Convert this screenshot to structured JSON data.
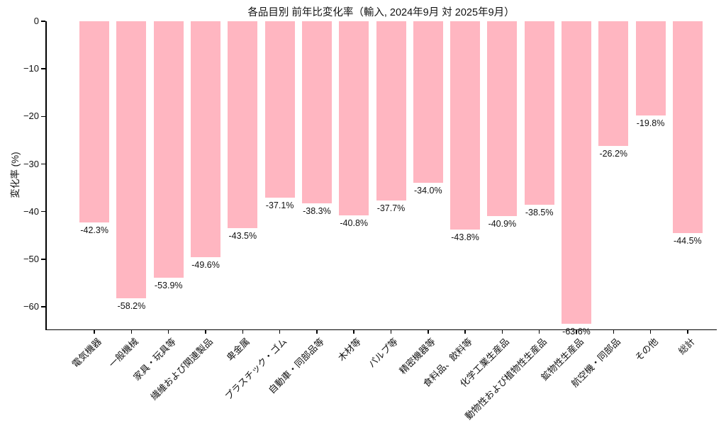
{
  "chart_data": {
    "type": "bar",
    "title": "各品目別 前年比変化率（輸入, 2024年9月 対 2025年9月）",
    "xlabel": "",
    "ylabel": "変化率 (%)",
    "ylim": [
      -64.75,
      0
    ],
    "grid": false,
    "legend": null,
    "bar_color": "#FFB6C1",
    "axis_color": "#000000",
    "categories": [
      "電気機器",
      "一般機械",
      "家具・玩具等",
      "繊維および関連製品",
      "卑金属",
      "プラスチック・ゴム",
      "自動車・同部品等",
      "木材等",
      "パルプ等",
      "精密機器等",
      "食料品、飲料等",
      "化学工業生産品",
      "動物性および植物性生産品",
      "鉱物性生産品",
      "航空機・同部品",
      "その他",
      "総計"
    ],
    "values": [
      -42.3,
      -58.2,
      -53.9,
      -49.6,
      -43.5,
      -37.1,
      -38.3,
      -40.8,
      -37.7,
      -34.0,
      -43.8,
      -40.9,
      -38.5,
      -63.6,
      -26.2,
      -19.8,
      -44.5
    ],
    "value_labels": [
      "-42.3%",
      "-58.2%",
      "-53.9%",
      "-49.6%",
      "-43.5%",
      "-37.1%",
      "-38.3%",
      "-40.8%",
      "-37.7%",
      "-34.0%",
      "-43.8%",
      "-40.9%",
      "-38.5%",
      "-63.6%",
      "-26.2%",
      "-19.8%",
      "-44.5%"
    ],
    "yticks": [
      0,
      -10,
      -20,
      -30,
      -40,
      -50,
      -60
    ],
    "ytick_labels": [
      "0",
      "−10",
      "−20",
      "−30",
      "−40",
      "−50",
      "−60"
    ]
  }
}
